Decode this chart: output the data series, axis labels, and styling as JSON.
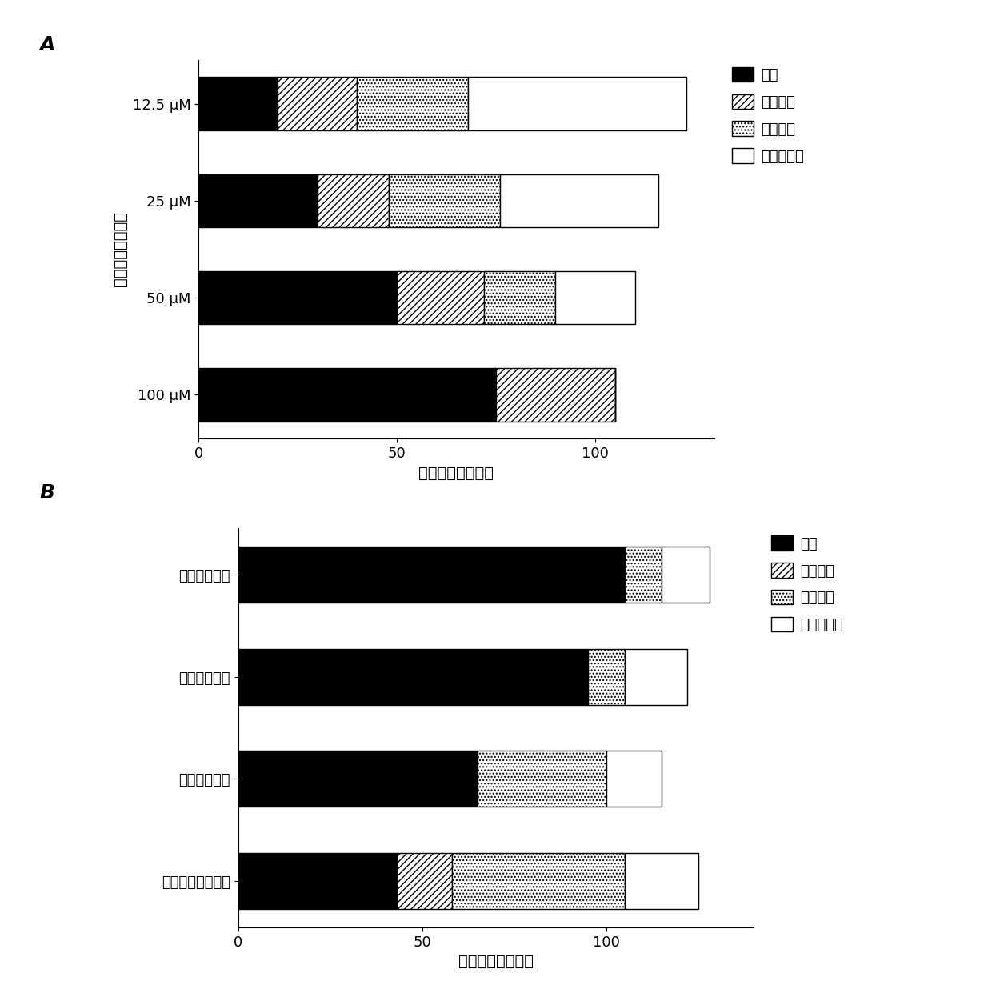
{
  "panel_A": {
    "ylabel": "小分子化合物浓度",
    "xlabel": "小分子化合物数目",
    "categories": [
      "12.5 μM",
      "25 μM",
      "50 μM",
      "100 μM"
    ],
    "lethal": [
      20,
      30,
      50,
      75
    ],
    "complete_inhibit": [
      20,
      18,
      22,
      30
    ],
    "partial_inhibit": [
      28,
      28,
      18,
      0
    ],
    "no_effect": [
      55,
      40,
      20,
      0
    ],
    "xlim": [
      0,
      130
    ],
    "xticks": [
      0,
      50,
      100
    ]
  },
  "panel_B": {
    "ylabel": "",
    "xlabel": "小分子化合物数目",
    "categories": [
      "荧光假单胞菌",
      "枯草芽孢杆菌",
      "番茄溃疡病菌",
      "十字花科黑腔病菌"
    ],
    "lethal": [
      105,
      95,
      65,
      43
    ],
    "complete_inhibit": [
      0,
      0,
      0,
      15
    ],
    "partial_inhibit": [
      10,
      10,
      35,
      47
    ],
    "no_effect": [
      13,
      17,
      15,
      20
    ],
    "xlim": [
      0,
      140
    ],
    "xticks": [
      0,
      50,
      100
    ]
  },
  "legend_labels": [
    "致死",
    "完全抑制",
    "部分抑制",
    "无显著影响"
  ],
  "panel_A_label": "A",
  "panel_B_label": "B"
}
